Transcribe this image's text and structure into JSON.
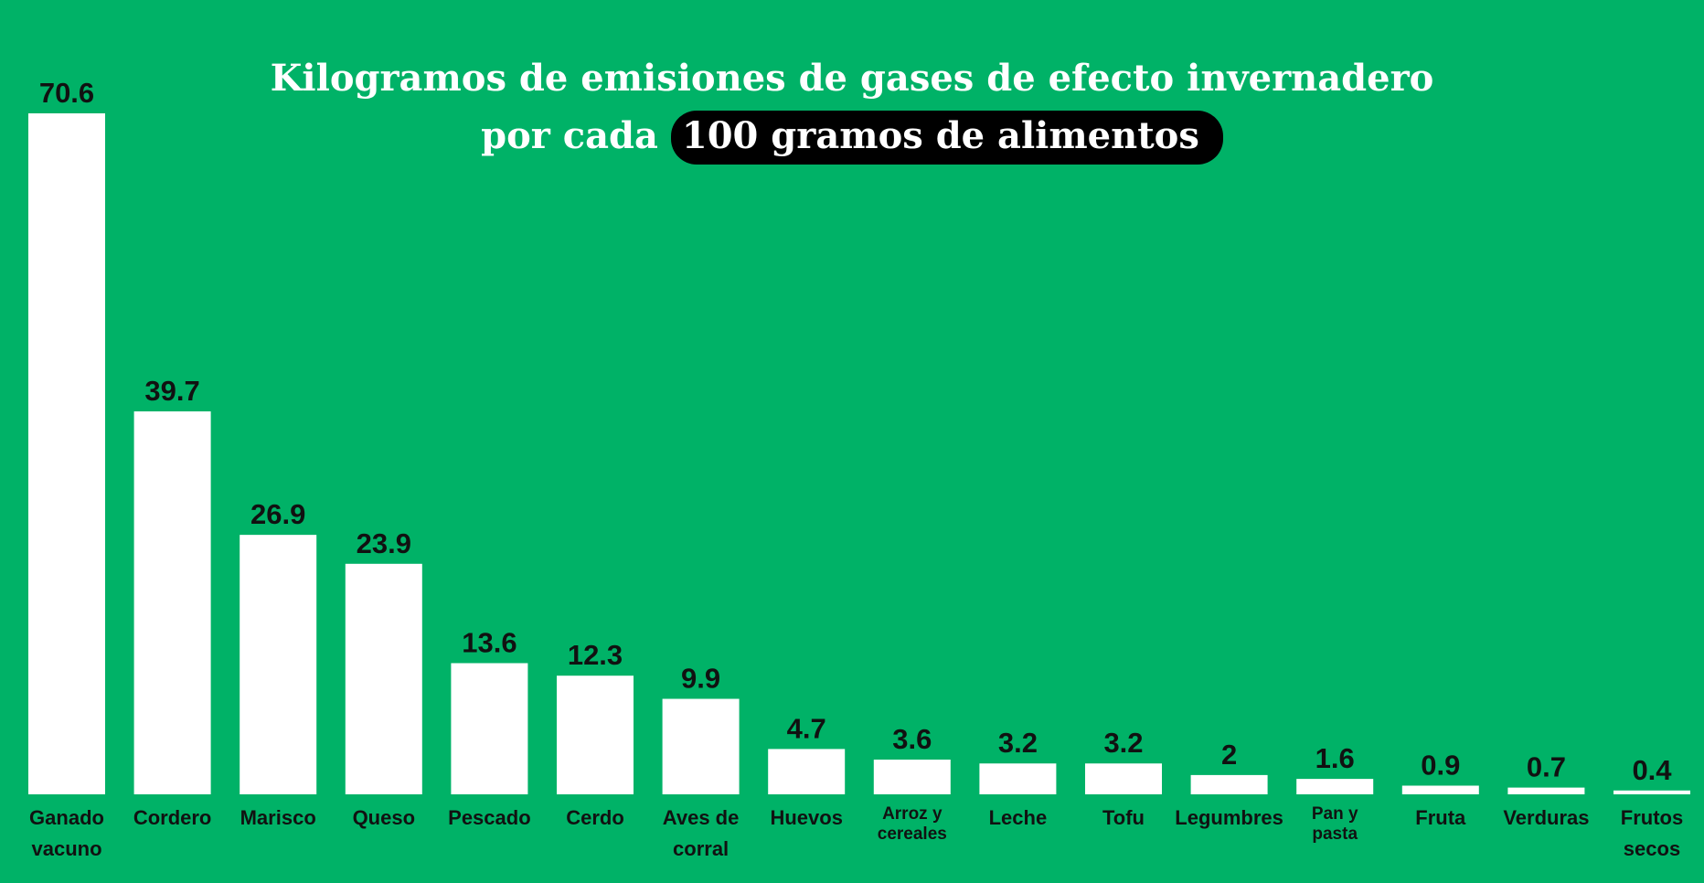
{
  "chart_data": {
    "type": "bar",
    "title_line1": "Kilogramos de emisiones de gases de efecto invernadero",
    "title_line2_prefix": "por cada",
    "title_line2_highlight": "100 gramos de alimentos",
    "categories": [
      [
        "Ganado",
        "vacuno"
      ],
      [
        "Cordero"
      ],
      [
        "Marisco"
      ],
      [
        "Queso"
      ],
      [
        "Pescado"
      ],
      [
        "Cerdo"
      ],
      [
        "Aves de",
        "corral"
      ],
      [
        "Huevos"
      ],
      [
        "Arroz y",
        "cereales"
      ],
      [
        "Leche"
      ],
      [
        "Tofu"
      ],
      [
        "Legumbres"
      ],
      [
        "Pan y",
        "pasta"
      ],
      [
        "Fruta"
      ],
      [
        "Verduras"
      ],
      [
        "Frutos",
        "secos"
      ]
    ],
    "values": [
      70.6,
      39.7,
      26.9,
      23.9,
      13.6,
      12.3,
      9.9,
      4.7,
      3.6,
      3.2,
      3.2,
      2,
      1.6,
      0.9,
      0.7,
      0.4
    ],
    "ylim": [
      0,
      70.6
    ],
    "grid": false,
    "colors": {
      "background": "#00b267",
      "bar": "#ffffff",
      "highlight": "#000000"
    }
  }
}
